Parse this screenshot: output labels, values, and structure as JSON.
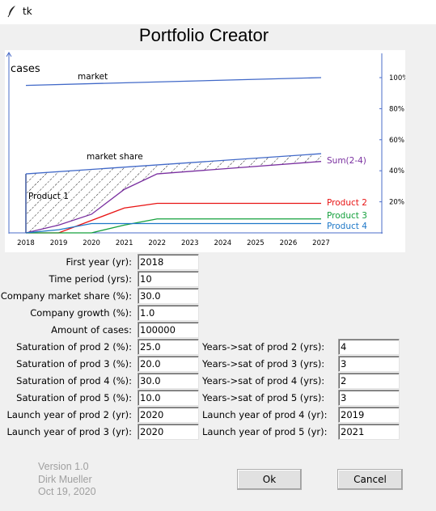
{
  "window": {
    "title": "tk"
  },
  "app": {
    "title": "Portfolio Creator"
  },
  "chart_data": {
    "type": "line",
    "ylabel": "cases",
    "x": [
      2018,
      2019,
      2020,
      2021,
      2022,
      2023,
      2024,
      2025,
      2026,
      2027
    ],
    "xlim": [
      2018,
      2027
    ],
    "right_axis": {
      "ticks": [
        "20%",
        "40%",
        "60%",
        "80%",
        "100%"
      ],
      "range": [
        0,
        100
      ]
    },
    "series": [
      {
        "name": "market",
        "label": "market",
        "color": "#4169c8",
        "x": [
          2018,
          2027
        ],
        "values": [
          95,
          100
        ]
      },
      {
        "name": "market share",
        "label": "market share",
        "color": "#4169c8",
        "x": [
          2018,
          2027
        ],
        "values": [
          38,
          51
        ]
      },
      {
        "name": "Sum(2-4)",
        "label": "Sum(2-4)",
        "color": "#7a30a0",
        "x": [
          2018,
          2019,
          2020,
          2021,
          2022,
          2027
        ],
        "values": [
          0,
          5,
          12,
          28,
          38,
          46
        ]
      },
      {
        "name": "Product 2",
        "label": "Product 2",
        "color": "#e81414",
        "x": [
          2018,
          2019,
          2020,
          2021,
          2022,
          2027
        ],
        "values": [
          0,
          0,
          8,
          16,
          19,
          19
        ]
      },
      {
        "name": "Product 3",
        "label": "Product 3",
        "color": "#14a03c",
        "x": [
          2018,
          2019,
          2020,
          2021,
          2022,
          2027
        ],
        "values": [
          0,
          0,
          0,
          5,
          9,
          9
        ]
      },
      {
        "name": "Product 4",
        "label": "Product 4",
        "color": "#1e78c8",
        "x": [
          2018,
          2019,
          2020,
          2021,
          2022,
          2027
        ],
        "values": [
          0,
          2,
          6,
          6,
          6,
          6
        ]
      }
    ],
    "annotations": {
      "product1": "Product 1"
    }
  },
  "form": {
    "left": [
      {
        "label": "First year (yr):",
        "value": "2018"
      },
      {
        "label": "Time period (yrs):",
        "value": "10"
      },
      {
        "label": "Company market share (%):",
        "value": "30.0"
      },
      {
        "label": "Company growth (%):",
        "value": "1.0"
      },
      {
        "label": "Amount of cases:",
        "value": "100000"
      },
      {
        "label": "Saturation of prod 2 (%):",
        "value": "25.0"
      },
      {
        "label": "Saturation of prod 3 (%):",
        "value": "20.0"
      },
      {
        "label": "Saturation of prod 4 (%):",
        "value": "30.0"
      },
      {
        "label": "Saturation of prod 5 (%):",
        "value": "10.0"
      },
      {
        "label": "Launch year of prod 2 (yr):",
        "value": "2020"
      },
      {
        "label": "Launch year of prod 3 (yr):",
        "value": "2020"
      }
    ],
    "right": [
      {
        "label": "Years->sat of prod 2 (yrs):",
        "value": "4"
      },
      {
        "label": "Years->sat of prod 3 (yrs):",
        "value": "3"
      },
      {
        "label": "Years->sat of prod 4 (yrs):",
        "value": "2"
      },
      {
        "label": "Years->sat of prod 5 (yrs):",
        "value": "3"
      },
      {
        "label": "Launch year of prod 4 (yr):",
        "value": "2019"
      },
      {
        "label": "Launch year of prod 5 (yr):",
        "value": "2021"
      }
    ]
  },
  "footer": {
    "version": "Version 1.0",
    "author": "Dirk Mueller",
    "date": "Oct 19, 2020",
    "ok_label": "Ok",
    "cancel_label": "Cancel"
  }
}
